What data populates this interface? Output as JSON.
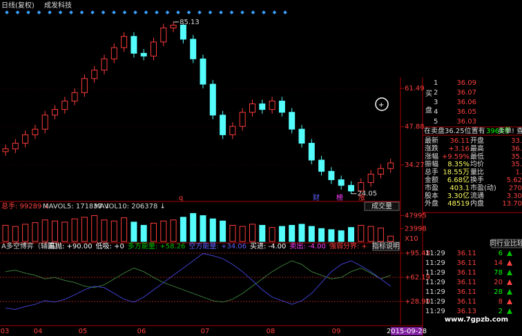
{
  "header": {
    "title": "日线(复权)",
    "stock": "成发科技"
  },
  "chart_data": [
    {
      "type": "candlestick",
      "open": [
        39,
        40,
        42,
        45,
        47,
        52,
        54,
        57,
        60,
        65,
        68,
        72,
        76,
        80,
        74,
        73,
        78,
        83,
        84,
        79,
        72,
        63,
        52,
        45,
        48,
        53,
        56,
        54,
        57,
        53,
        47,
        42,
        36,
        32,
        29,
        27,
        25,
        28,
        31,
        33
      ],
      "high": [
        41.5,
        43.5,
        46.5,
        48.5,
        53.5,
        55.5,
        58.5,
        61.5,
        66.5,
        69.5,
        73.5,
        77.5,
        81.5,
        81.5,
        75.5,
        79.5,
        84.5,
        85.13,
        84.5,
        80.5,
        73.5,
        64.5,
        53.5,
        49.5,
        54.5,
        57.5,
        57.5,
        58.5,
        58.5,
        54.5,
        48.5,
        43.5,
        37.5,
        33.5,
        30.5,
        28.5,
        29.5,
        32.5,
        34.5,
        36.5
      ],
      "low": [
        37.5,
        38.5,
        40.5,
        43.5,
        45.5,
        50.5,
        52.5,
        55.5,
        58.5,
        63.5,
        66.5,
        70.5,
        74.5,
        72.5,
        71.5,
        71.5,
        76.5,
        81.5,
        77.5,
        70.5,
        61.5,
        50.5,
        43.5,
        43.5,
        46.5,
        51.5,
        52.5,
        52.5,
        51.5,
        45.5,
        40.5,
        34.5,
        30.5,
        27.5,
        25.5,
        24.05,
        24.5,
        26.5,
        29.5,
        31.5
      ],
      "close": [
        40,
        42,
        45,
        47,
        52,
        54,
        57,
        60,
        65,
        68,
        72,
        76,
        80,
        74,
        73,
        78,
        83,
        84,
        79,
        72,
        63,
        52,
        45,
        48,
        53,
        56,
        54,
        57,
        53,
        47,
        42,
        36,
        32,
        29,
        27,
        25,
        28,
        31,
        33,
        35
      ],
      "ylim": [
        23,
        90
      ],
      "yticks": [
        61.49,
        47.88,
        34.27
      ],
      "up_color": "#ff3c3c",
      "down_color": "#54fcfc",
      "xlabels": [
        "03",
        "04",
        "05",
        "06",
        "07",
        "08",
        "09"
      ],
      "date": "2015-09-28",
      "markers": [
        "q",
        "财",
        "榜",
        "涨"
      ]
    },
    {
      "type": "bar",
      "title": "成交量",
      "legend": [
        "总手: 99289 ↓",
        "MAVOL5: 171837 ↓",
        "MAVOL10: 206378 ↓"
      ],
      "values": [
        30000,
        28000,
        32000,
        35000,
        40000,
        38000,
        36000,
        42000,
        45000,
        48000,
        40000,
        38000,
        44000,
        36000,
        30000,
        34000,
        38000,
        40000,
        45000,
        52000,
        48000,
        42000,
        38000,
        30000,
        28000,
        32000,
        30000,
        26000,
        28000,
        30000,
        32000,
        28000,
        24000,
        22000,
        20000,
        26000,
        30000,
        28000,
        25000,
        10000
      ],
      "ylim": [
        0,
        64000
      ],
      "yticks": [
        47995,
        23998
      ],
      "unit": "X10"
    },
    {
      "type": "line",
      "title": "A多空博弈（辅图）",
      "button": "指标说明",
      "legend": [
        {
          "text": "高抛: +90.00",
          "color": "#ffffff"
        },
        {
          "text": "低吸: +0",
          "color": "#ffffff"
        },
        {
          "text": "多方能量: +58.26",
          "color": "#00c000"
        },
        {
          "text": "空方能量: +34.06",
          "color": "#6060ff"
        },
        {
          "text": "买进: -4.00",
          "color": "#ffffff"
        },
        {
          "text": "卖出: -4.00",
          "color": "#ff40ff"
        },
        {
          "text": "强弱分界: +",
          "color": "#ff4040"
        }
      ],
      "series": [
        {
          "color": "#3a7a3a",
          "values": [
            70,
            72,
            68,
            65,
            60,
            62,
            58,
            55,
            50,
            48,
            52,
            60,
            68,
            75,
            70,
            62,
            55,
            50,
            45,
            40,
            35,
            30,
            28,
            32,
            40,
            50,
            60,
            70,
            78,
            85,
            80,
            70,
            65,
            60,
            62,
            70,
            75,
            68,
            60,
            65
          ]
        },
        {
          "color": "#4040d0",
          "values": [
            20,
            18,
            22,
            25,
            30,
            28,
            32,
            38,
            45,
            50,
            48,
            40,
            32,
            28,
            35,
            45,
            55,
            65,
            75,
            85,
            95,
            92,
            88,
            80,
            70,
            58,
            45,
            35,
            30,
            25,
            30,
            40,
            55,
            70,
            80,
            85,
            78,
            70,
            60,
            50
          ]
        }
      ],
      "ylim": [
        -2.5,
        100.2
      ],
      "yticks": [
        {
          "value": 95.48,
          "label": "+95.48"
        },
        {
          "value": 62.19,
          "label": "+62.19"
        },
        {
          "value": 28.9,
          "label": "+28.90"
        }
      ]
    }
  ],
  "panel": {
    "side": [
      "买",
      "盘"
    ],
    "rows": [
      [
        "1",
        "36.09"
      ],
      [
        "2",
        "36.07"
      ],
      [
        "3",
        "36.06"
      ],
      [
        "4",
        "36.05"
      ],
      [
        "5",
        "36.03"
      ]
    ],
    "notice": "在卖盘36.25位置有",
    "notice_qty": "3963手",
    "notice_tail": "卖单! 查看详",
    "stats": [
      [
        "最新",
        "36.11",
        "开盘",
        "33."
      ],
      [
        "涨跌",
        "+3.16",
        "最高",
        "36."
      ],
      [
        "涨幅",
        "+9.59%",
        "最低",
        "35."
      ],
      [
        "振幅",
        "8.35%",
        "均价",
        "35."
      ],
      [
        "总手",
        "18.55万",
        "量比",
        "1."
      ],
      [
        "金额",
        "6.68亿",
        "换手",
        "5.62"
      ],
      [
        "市盈",
        "403.1",
        "市盈(动)",
        "270"
      ],
      [
        "股本",
        "3.30亿",
        "流通",
        "3.30"
      ],
      [
        "外盘",
        "48519",
        "内盘",
        "13.70"
      ]
    ],
    "trades_header": "同行业比较",
    "trades": [
      [
        "11:29",
        "36.11",
        "6"
      ],
      [
        "11:29",
        "36.11",
        "14"
      ],
      [
        "11:29",
        "36.11",
        "78"
      ],
      [
        "11:29",
        "36.11",
        "20"
      ],
      [
        "11:29",
        "36.11",
        "28"
      ],
      [
        "11:29",
        "36.11",
        "8"
      ],
      [
        "11:29",
        "36.13",
        "2"
      ]
    ]
  },
  "watermark": "www.7gpzb.com"
}
